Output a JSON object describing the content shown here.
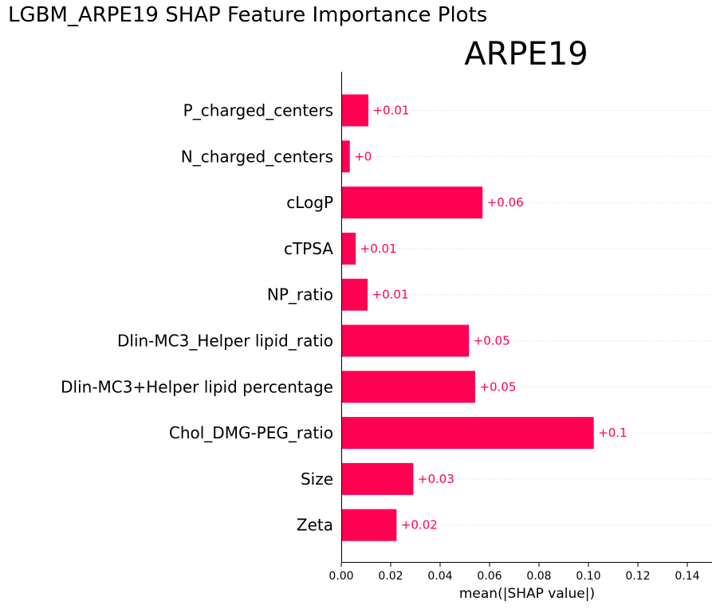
{
  "figure": {
    "suptitle": "LGBM_ARPE19 SHAP Feature Importance Plots"
  },
  "chart_data": {
    "type": "bar",
    "orientation": "horizontal",
    "title": "ARPE19",
    "xlabel": "mean(|SHAP value|)",
    "ylabel": "",
    "xlim": [
      0,
      0.15
    ],
    "xticks": [
      "0.00",
      "0.02",
      "0.04",
      "0.06",
      "0.08",
      "0.10",
      "0.12",
      "0.14"
    ],
    "grid": "dotted horizontal lines per category",
    "bar_color": "#ff0052",
    "categories": [
      "P_charged_centers",
      "N_charged_centers",
      "cLogP",
      "cTPSA",
      "NP_ratio",
      "Dlin-MC3_Helper lipid_ratio",
      "Dlin-MC3+Helper lipid percentage",
      "Chol_DMG-PEG_ratio",
      "Size",
      "Zeta"
    ],
    "values": [
      0.0108,
      0.0033,
      0.057,
      0.0057,
      0.0105,
      0.0515,
      0.054,
      0.102,
      0.029,
      0.0222
    ],
    "value_labels": [
      "+0.01",
      "+0",
      "+0.06",
      "+0.01",
      "+0.01",
      "+0.05",
      "+0.05",
      "+0.1",
      "+0.03",
      "+0.02"
    ]
  }
}
